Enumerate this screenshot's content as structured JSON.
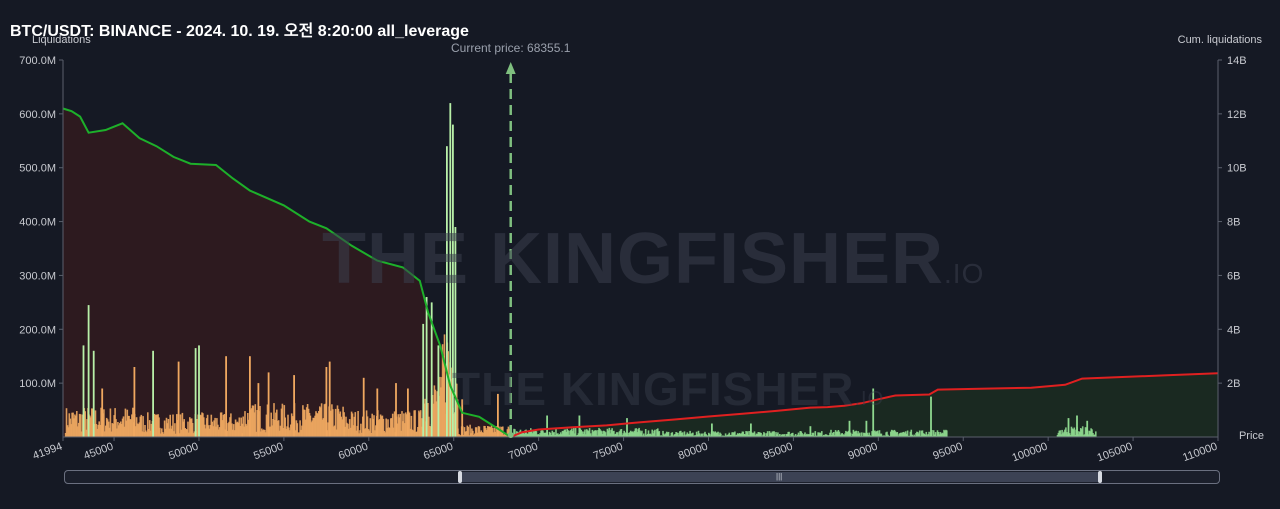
{
  "title": "BTC/USDT: BINANCE - 2024. 10. 19. 오전 8:20:00 all_leverage",
  "chart_data": {
    "type": "bar",
    "ylabel_left": "Liquidations",
    "ylabel_right": "Cum. liquidations",
    "xlabel": "Price",
    "xlim": [
      41994,
      110000
    ],
    "ylim_left": [
      0,
      700000000
    ],
    "ylim_right": [
      0,
      14000000000
    ],
    "x_ticks": [
      {
        "value": 41994,
        "label": "41994"
      },
      {
        "value": 45000,
        "label": "45000"
      },
      {
        "value": 50000,
        "label": "50000"
      },
      {
        "value": 55000,
        "label": "55000"
      },
      {
        "value": 60000,
        "label": "60000"
      },
      {
        "value": 65000,
        "label": "65000"
      },
      {
        "value": 70000,
        "label": "70000"
      },
      {
        "value": 75000,
        "label": "75000"
      },
      {
        "value": 80000,
        "label": "80000"
      },
      {
        "value": 85000,
        "label": "85000"
      },
      {
        "value": 90000,
        "label": "90000"
      },
      {
        "value": 95000,
        "label": "95000"
      },
      {
        "value": 100000,
        "label": "100000"
      },
      {
        "value": 105000,
        "label": "105000"
      },
      {
        "value": 110000,
        "label": "110000"
      }
    ],
    "y_ticks_left": [
      {
        "value": 100000000,
        "label": "100.0M"
      },
      {
        "value": 200000000,
        "label": "200.0M"
      },
      {
        "value": 300000000,
        "label": "300.0M"
      },
      {
        "value": 400000000,
        "label": "400.0M"
      },
      {
        "value": 500000000,
        "label": "500.0M"
      },
      {
        "value": 600000000,
        "label": "600.0M"
      },
      {
        "value": 700000000,
        "label": "700.0M"
      }
    ],
    "y_ticks_right": [
      {
        "value": 2000000000,
        "label": "2B"
      },
      {
        "value": 4000000000,
        "label": "4B"
      },
      {
        "value": 6000000000,
        "label": "6B"
      },
      {
        "value": 8000000000,
        "label": "8B"
      },
      {
        "value": 10000000000,
        "label": "10B"
      },
      {
        "value": 12000000000,
        "label": "12B"
      },
      {
        "value": 14000000000,
        "label": "14B"
      }
    ],
    "current_price": 68355.1,
    "current_price_label": "Current price: 68355.1",
    "series": [
      {
        "kind": "cumulative-line",
        "side": "short",
        "color": "#e02020",
        "fill": "#1a2a22",
        "x": [
          68355,
          69000,
          70000,
          72000,
          74000,
          76000,
          78000,
          80000,
          82000,
          84000,
          86000,
          87000,
          88000,
          89000,
          90000,
          91000,
          93000,
          93500,
          96000,
          99000,
          101000,
          102000,
          104000,
          107000,
          110000
        ],
        "y": [
          0,
          170000000,
          280000000,
          360000000,
          430000000,
          550000000,
          650000000,
          760000000,
          860000000,
          970000000,
          1090000000,
          1110000000,
          1160000000,
          1250000000,
          1400000000,
          1540000000,
          1580000000,
          1760000000,
          1790000000,
          1830000000,
          1940000000,
          2170000000,
          2220000000,
          2290000000,
          2370000000
        ]
      },
      {
        "kind": "cumulative-line",
        "side": "long",
        "color": "#1db02a",
        "fill": "#2e1a20",
        "x": [
          41994,
          42500,
          43000,
          43500,
          44500,
          45500,
          46500,
          47500,
          48500,
          49500,
          51000,
          52000,
          53000,
          55000,
          56500,
          57500,
          59000,
          60500,
          62000,
          63000,
          63500,
          64200,
          64800,
          65500,
          66500,
          67500,
          68355
        ],
        "y": [
          12200000000,
          12100000000,
          11900000000,
          11300000000,
          11400000000,
          11650000000,
          11100000000,
          10800000000,
          10400000000,
          10150000000,
          10100000000,
          9600000000,
          9150000000,
          8600000000,
          8000000000,
          7750000000,
          7100000000,
          6550000000,
          6300000000,
          5800000000,
          4600000000,
          3400000000,
          1900000000,
          900000000,
          750000000,
          350000000,
          0
        ]
      }
    ],
    "bar_colors": {
      "long": "#f0a860",
      "short": "#8ed88e",
      "spike": "#b8f0a8"
    },
    "bar_segments": [
      {
        "side": "long",
        "from": 42100,
        "to": 46500,
        "base": 50000000,
        "spikes": [
          [
            43200,
            170000000
          ],
          [
            43500,
            245000000
          ],
          [
            43800,
            160000000
          ],
          [
            44300,
            90000000
          ],
          [
            46200,
            130000000
          ]
        ]
      },
      {
        "side": "long",
        "from": 46500,
        "to": 52500,
        "base": 40000000,
        "spikes": [
          [
            47300,
            160000000
          ],
          [
            48800,
            140000000
          ],
          [
            49800,
            165000000
          ],
          [
            50000,
            170000000
          ],
          [
            51600,
            150000000
          ]
        ]
      },
      {
        "side": "long",
        "from": 52500,
        "to": 58500,
        "base": 55000000,
        "spikes": [
          [
            53000,
            150000000
          ],
          [
            53500,
            100000000
          ],
          [
            54100,
            120000000
          ],
          [
            55600,
            115000000
          ],
          [
            57500,
            130000000
          ],
          [
            57700,
            140000000
          ]
        ]
      },
      {
        "side": "long",
        "from": 58500,
        "to": 63100,
        "base": 45000000,
        "spikes": [
          [
            59700,
            110000000
          ],
          [
            60500,
            90000000
          ],
          [
            61600,
            100000000
          ],
          [
            62300,
            90000000
          ]
        ]
      },
      {
        "side": "long",
        "from": 63100,
        "to": 64300,
        "base": 100000000,
        "spikes": [
          [
            63200,
            210000000
          ],
          [
            63400,
            260000000
          ],
          [
            63700,
            250000000
          ],
          [
            64100,
            170000000
          ]
        ]
      },
      {
        "side": "long",
        "from": 64300,
        "to": 65200,
        "base": 200000000,
        "spikes": [
          [
            64600,
            540000000
          ],
          [
            64800,
            620000000
          ],
          [
            64950,
            580000000
          ],
          [
            65100,
            390000000
          ]
        ]
      },
      {
        "side": "long",
        "from": 65200,
        "to": 68300,
        "base": 20000000,
        "spikes": [
          [
            65500,
            70000000
          ],
          [
            67600,
            80000000
          ]
        ]
      },
      {
        "side": "short",
        "from": 68500,
        "to": 77000,
        "base": 15000000,
        "spikes": [
          [
            70500,
            40000000
          ],
          [
            72400,
            40000000
          ],
          [
            75200,
            35000000
          ]
        ]
      },
      {
        "side": "short",
        "from": 77000,
        "to": 87000,
        "base": 10000000,
        "spikes": [
          [
            80200,
            25000000
          ],
          [
            82500,
            25000000
          ],
          [
            86000,
            20000000
          ]
        ]
      },
      {
        "side": "short",
        "from": 87000,
        "to": 94000,
        "base": 12000000,
        "spikes": [
          [
            88300,
            30000000
          ],
          [
            89300,
            30000000
          ],
          [
            89700,
            90000000
          ],
          [
            93100,
            75000000
          ]
        ]
      },
      {
        "side": "short",
        "from": 100500,
        "to": 102800,
        "base": 18000000,
        "spikes": [
          [
            101200,
            35000000
          ],
          [
            101700,
            40000000
          ],
          [
            102300,
            30000000
          ]
        ]
      }
    ],
    "grid": false,
    "legend": "none"
  },
  "watermark": {
    "brand": "THE KINGFISHER",
    "suffix": ".IO"
  }
}
